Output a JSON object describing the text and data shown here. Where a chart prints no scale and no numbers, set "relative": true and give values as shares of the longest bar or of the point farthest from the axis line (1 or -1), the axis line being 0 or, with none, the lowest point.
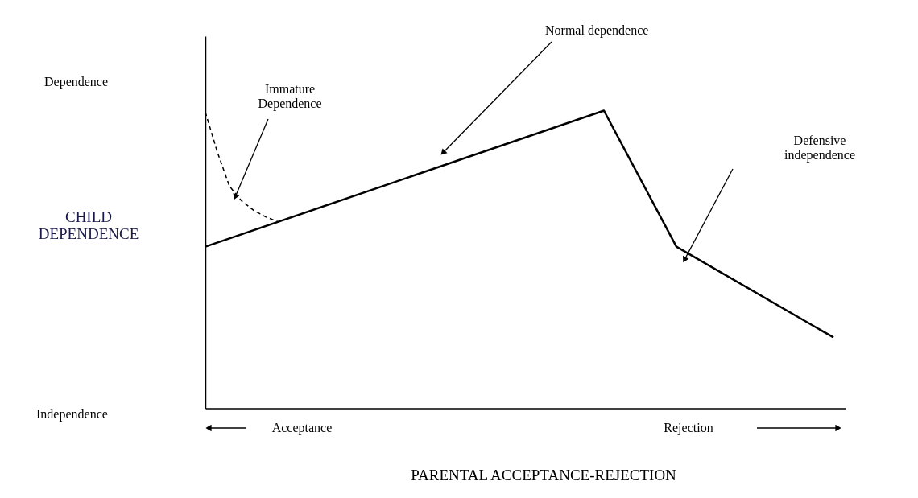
{
  "chart_data": {
    "type": "line",
    "relative": true,
    "xlabel": "PARENTAL ACCEPTANCE-REJECTION",
    "ylabel": "CHILD DEPENDENCE",
    "grid": false,
    "marker": "none",
    "categories": [
      null,
      null,
      null,
      null,
      null,
      null,
      null,
      null,
      null,
      null,
      null,
      null,
      null,
      null,
      null,
      null,
      null,
      null,
      null,
      null,
      null,
      null,
      null,
      null,
      null,
      null,
      null,
      null,
      null,
      null,
      null,
      null,
      null,
      null,
      null,
      null,
      null,
      null,
      null,
      null,
      null,
      null,
      null,
      null,
      null,
      null,
      null,
      null,
      null,
      null,
      null,
      null,
      null,
      null
    ],
    "series": [
      {
        "color": "#000000",
        "line_style": "solid",
        "values": [
          0.543,
          null,
          null,
          null,
          null,
          null,
          null,
          null,
          null,
          null,
          null,
          null,
          null,
          null,
          null,
          null,
          null,
          null,
          null,
          null,
          null,
          null,
          null,
          null,
          null,
          null,
          null,
          null,
          null,
          null,
          null,
          null,
          null,
          1,
          null,
          null,
          null,
          null,
          null,
          0.543,
          null,
          null,
          null,
          null,
          null,
          null,
          null,
          null,
          null,
          null,
          null,
          null,
          0.238,
          null
        ]
      },
      {
        "color": "#000000",
        "line_style": "dashed",
        "values": [
          0.995,
          0.86,
          0.746,
          0.697,
          0.665,
          0.643,
          0.627,
          null,
          null,
          null,
          null,
          null,
          null,
          null,
          null,
          null,
          null,
          null,
          null,
          null,
          null,
          null,
          null,
          null,
          null,
          null,
          null,
          null,
          null,
          null,
          null,
          null,
          null,
          null,
          null,
          null,
          null,
          null,
          null,
          null,
          null,
          null,
          null,
          null,
          null,
          null,
          null,
          null,
          null,
          null,
          null,
          null,
          null,
          null
        ]
      }
    ],
    "annotations": [
      "Dependence",
      "Independence",
      "Immature Dependence",
      "Normal dependence",
      "Defensive independence",
      "Acceptance",
      "Rejection"
    ]
  }
}
